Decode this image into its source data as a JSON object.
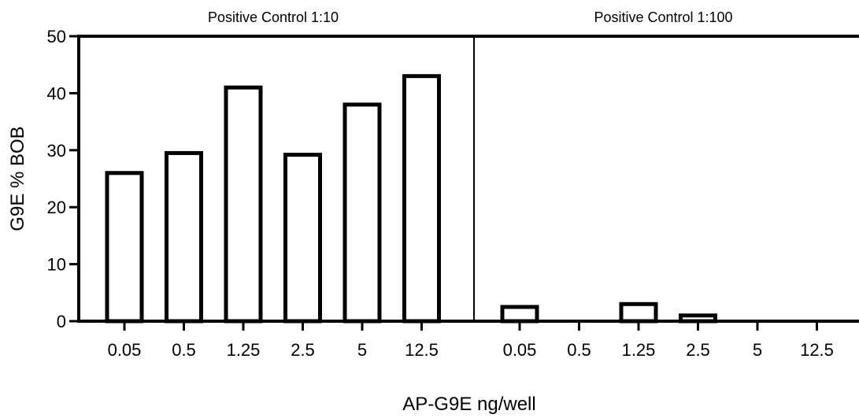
{
  "chart_data": {
    "type": "bar",
    "ylabel": "G9E % BOB",
    "xlabel": "AP-G9E ng/well",
    "ylim": [
      0,
      50
    ],
    "yticks": [
      0,
      10,
      20,
      30,
      40,
      50
    ],
    "grid": false,
    "legend": "none",
    "bar_fill": "#ffffff",
    "bar_stroke": "#000000",
    "panels": [
      {
        "title": "Positive Control 1:10",
        "categories": [
          "0.05",
          "0.5",
          "1.25",
          "2.5",
          "5",
          "12.5"
        ],
        "values": [
          26,
          29.5,
          41,
          29.2,
          38,
          43
        ]
      },
      {
        "title": "Positive Control 1:100",
        "categories": [
          "0.05",
          "0.5",
          "1.25",
          "2.5",
          "5",
          "12.5"
        ],
        "values": [
          2.5,
          0,
          3,
          1,
          0,
          0
        ]
      }
    ]
  }
}
